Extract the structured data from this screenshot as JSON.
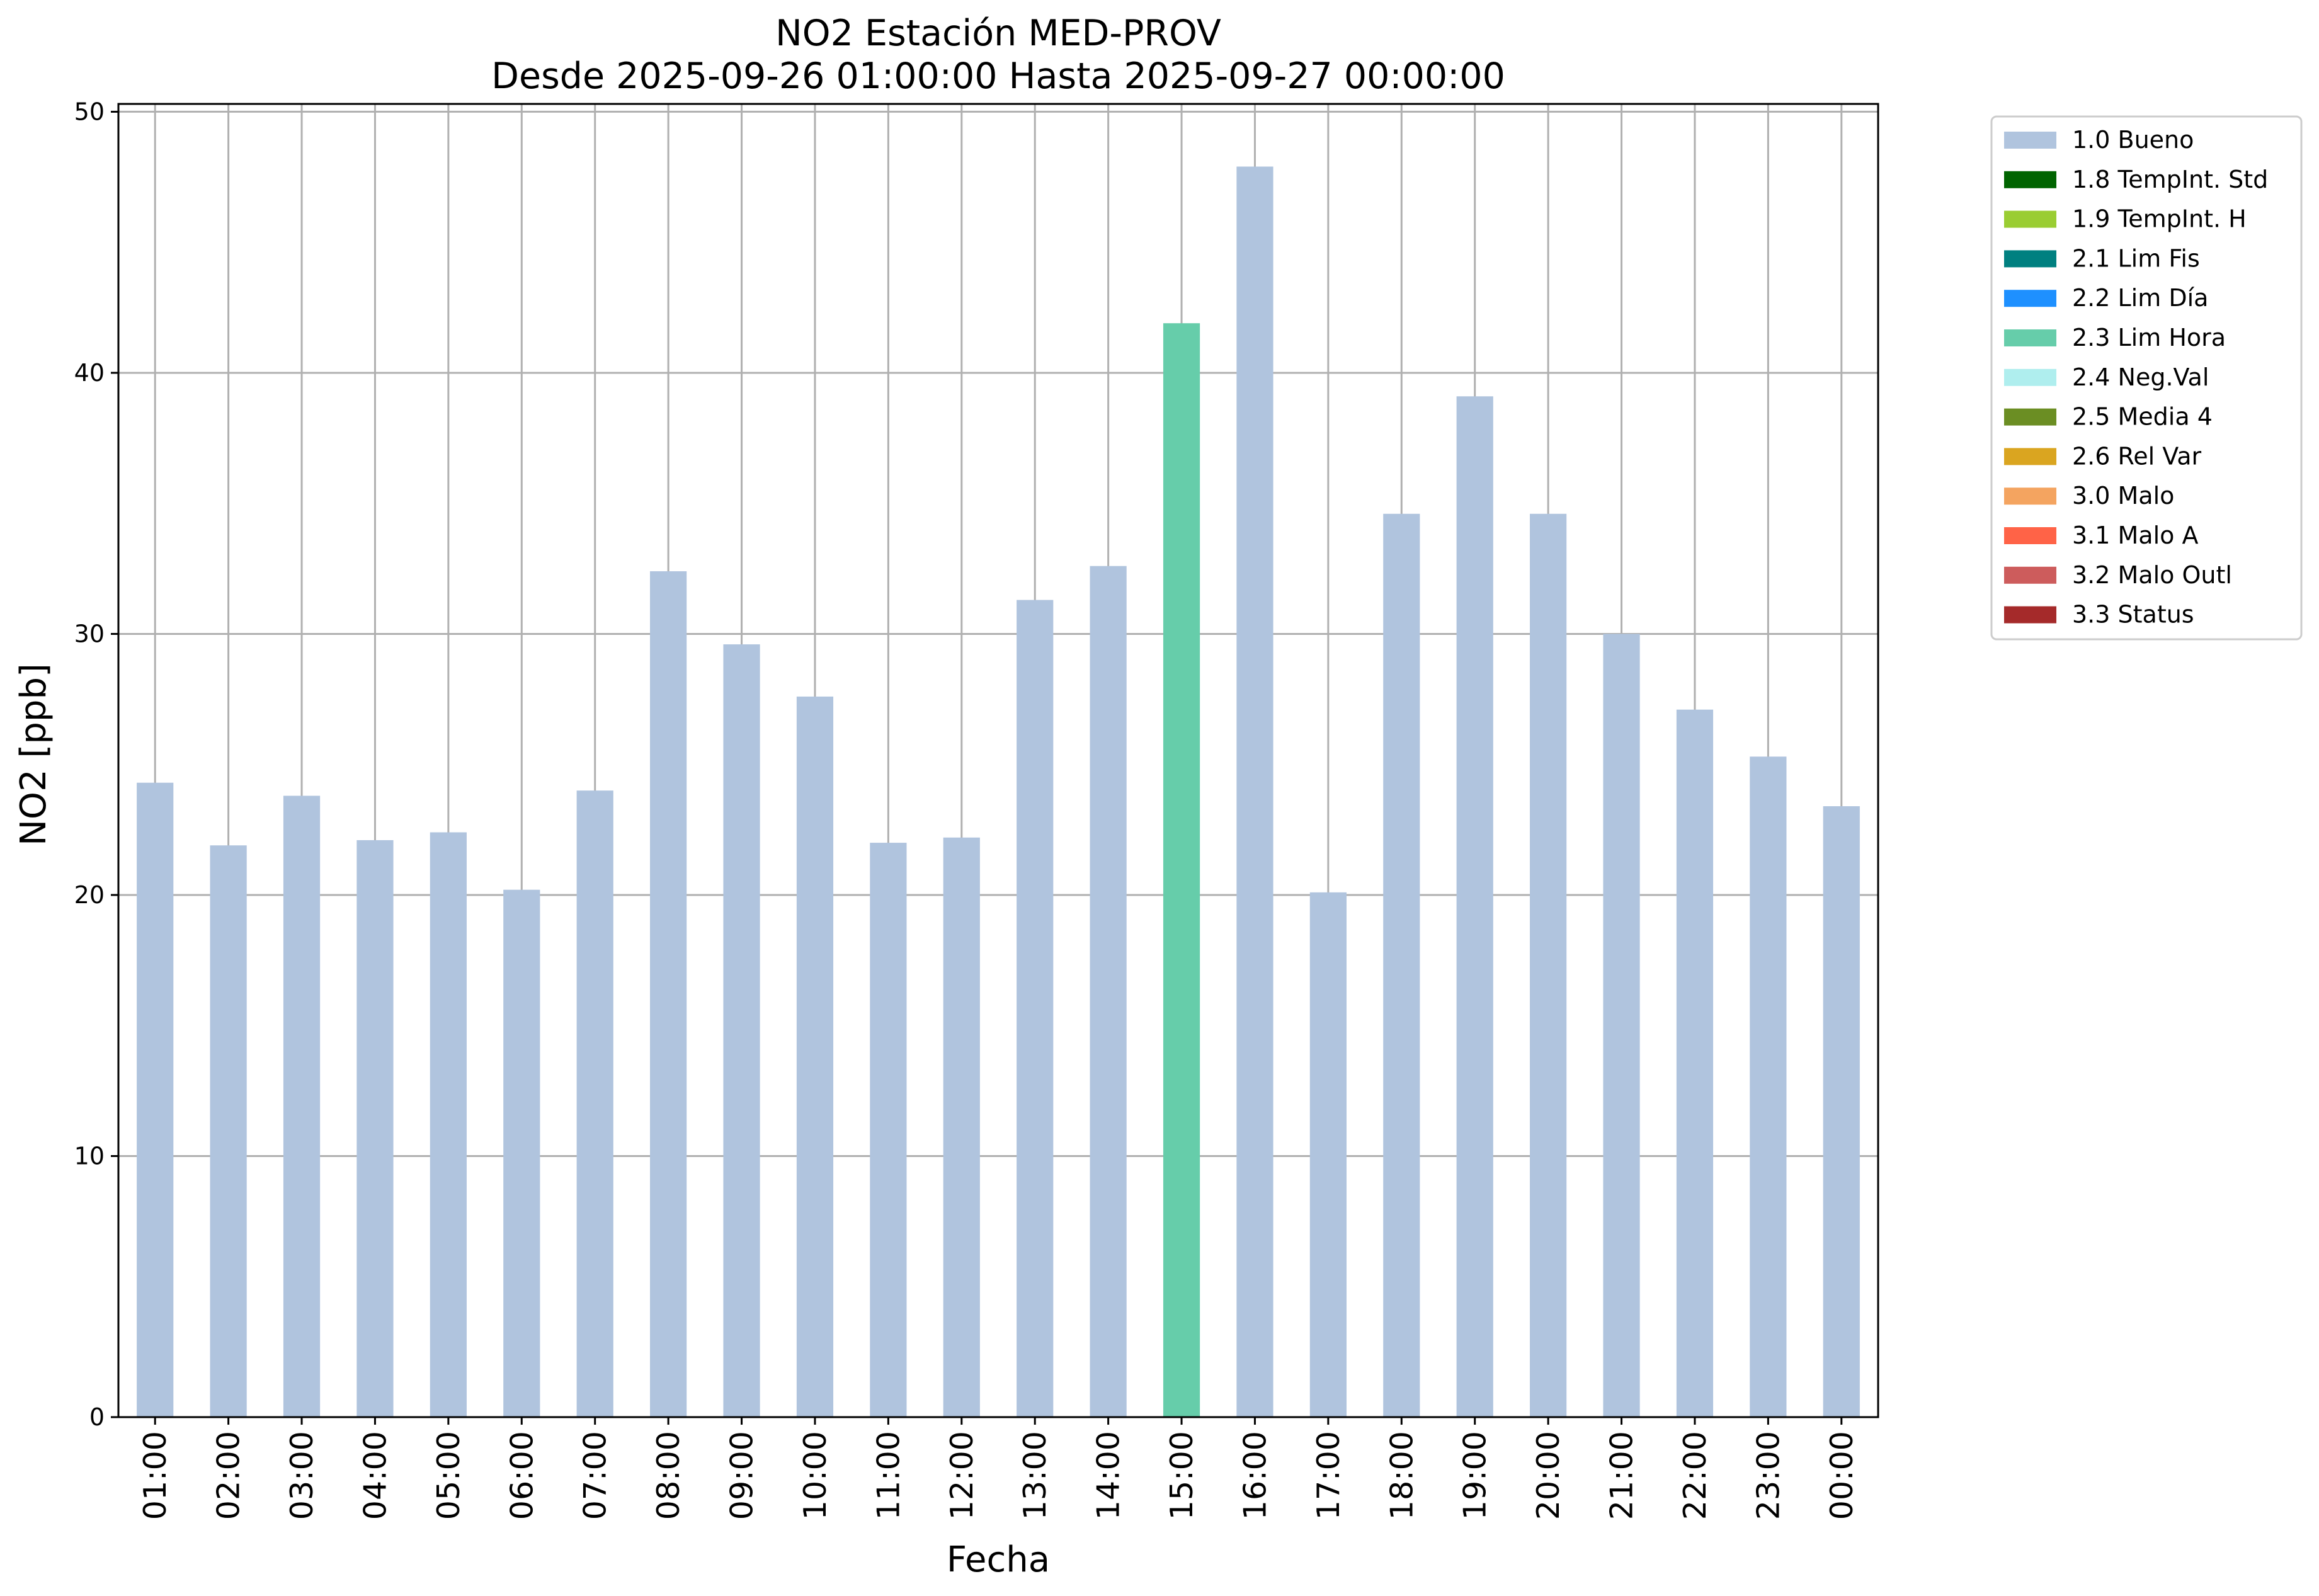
{
  "chart_data": {
    "type": "bar",
    "title": "NO2 Estación MED-PROV",
    "subtitle": "Desde 2025-09-26 01:00:00 Hasta 2025-09-27 00:00:00",
    "xlabel": "Fecha",
    "ylabel": "NO2 [ppb]",
    "ylim": [
      0,
      50.3
    ],
    "yticks": [
      0,
      10,
      20,
      30,
      40,
      50
    ],
    "grid": true,
    "legend_position": "outside-top-right",
    "categories": [
      "01:00",
      "02:00",
      "03:00",
      "04:00",
      "05:00",
      "06:00",
      "07:00",
      "08:00",
      "09:00",
      "10:00",
      "11:00",
      "12:00",
      "13:00",
      "14:00",
      "15:00",
      "16:00",
      "17:00",
      "18:00",
      "19:00",
      "20:00",
      "21:00",
      "22:00",
      "23:00",
      "00:00"
    ],
    "values": [
      24.3,
      21.9,
      23.8,
      22.1,
      22.4,
      20.2,
      24.0,
      32.4,
      29.6,
      27.6,
      22.0,
      22.2,
      31.3,
      32.6,
      41.9,
      47.9,
      20.1,
      34.6,
      39.1,
      34.6,
      30.0,
      27.1,
      25.3,
      23.4
    ],
    "flags": [
      "1.0 Bueno",
      "1.0 Bueno",
      "1.0 Bueno",
      "1.0 Bueno",
      "1.0 Bueno",
      "1.0 Bueno",
      "1.0 Bueno",
      "1.0 Bueno",
      "1.0 Bueno",
      "1.0 Bueno",
      "1.0 Bueno",
      "1.0 Bueno",
      "1.0 Bueno",
      "1.0 Bueno",
      "2.3 Lim Hora",
      "1.0 Bueno",
      "1.0 Bueno",
      "1.0 Bueno",
      "1.0 Bueno",
      "1.0 Bueno",
      "1.0 Bueno",
      "1.0 Bueno",
      "1.0 Bueno",
      "1.0 Bueno"
    ],
    "legend": [
      {
        "name": "1.0 Bueno",
        "color": "#b0c4de"
      },
      {
        "name": "1.8 TempInt. Std",
        "color": "#006400"
      },
      {
        "name": "1.9 TempInt. H",
        "color": "#9acd32"
      },
      {
        "name": "2.1 Lim Fis",
        "color": "#008080"
      },
      {
        "name": "2.2 Lim Día",
        "color": "#1e90ff"
      },
      {
        "name": "2.3 Lim Hora",
        "color": "#66cdaa"
      },
      {
        "name": "2.4 Neg.Val",
        "color": "#afeeee"
      },
      {
        "name": "2.5 Media 4",
        "color": "#6b8e23"
      },
      {
        "name": "2.6 Rel Var",
        "color": "#daa520"
      },
      {
        "name": "3.0 Malo",
        "color": "#f4a460"
      },
      {
        "name": "3.1 Malo A",
        "color": "#ff6347"
      },
      {
        "name": "3.2 Malo Outl",
        "color": "#cd5c5c"
      },
      {
        "name": "3.3 Status",
        "color": "#a52a2a"
      }
    ]
  }
}
